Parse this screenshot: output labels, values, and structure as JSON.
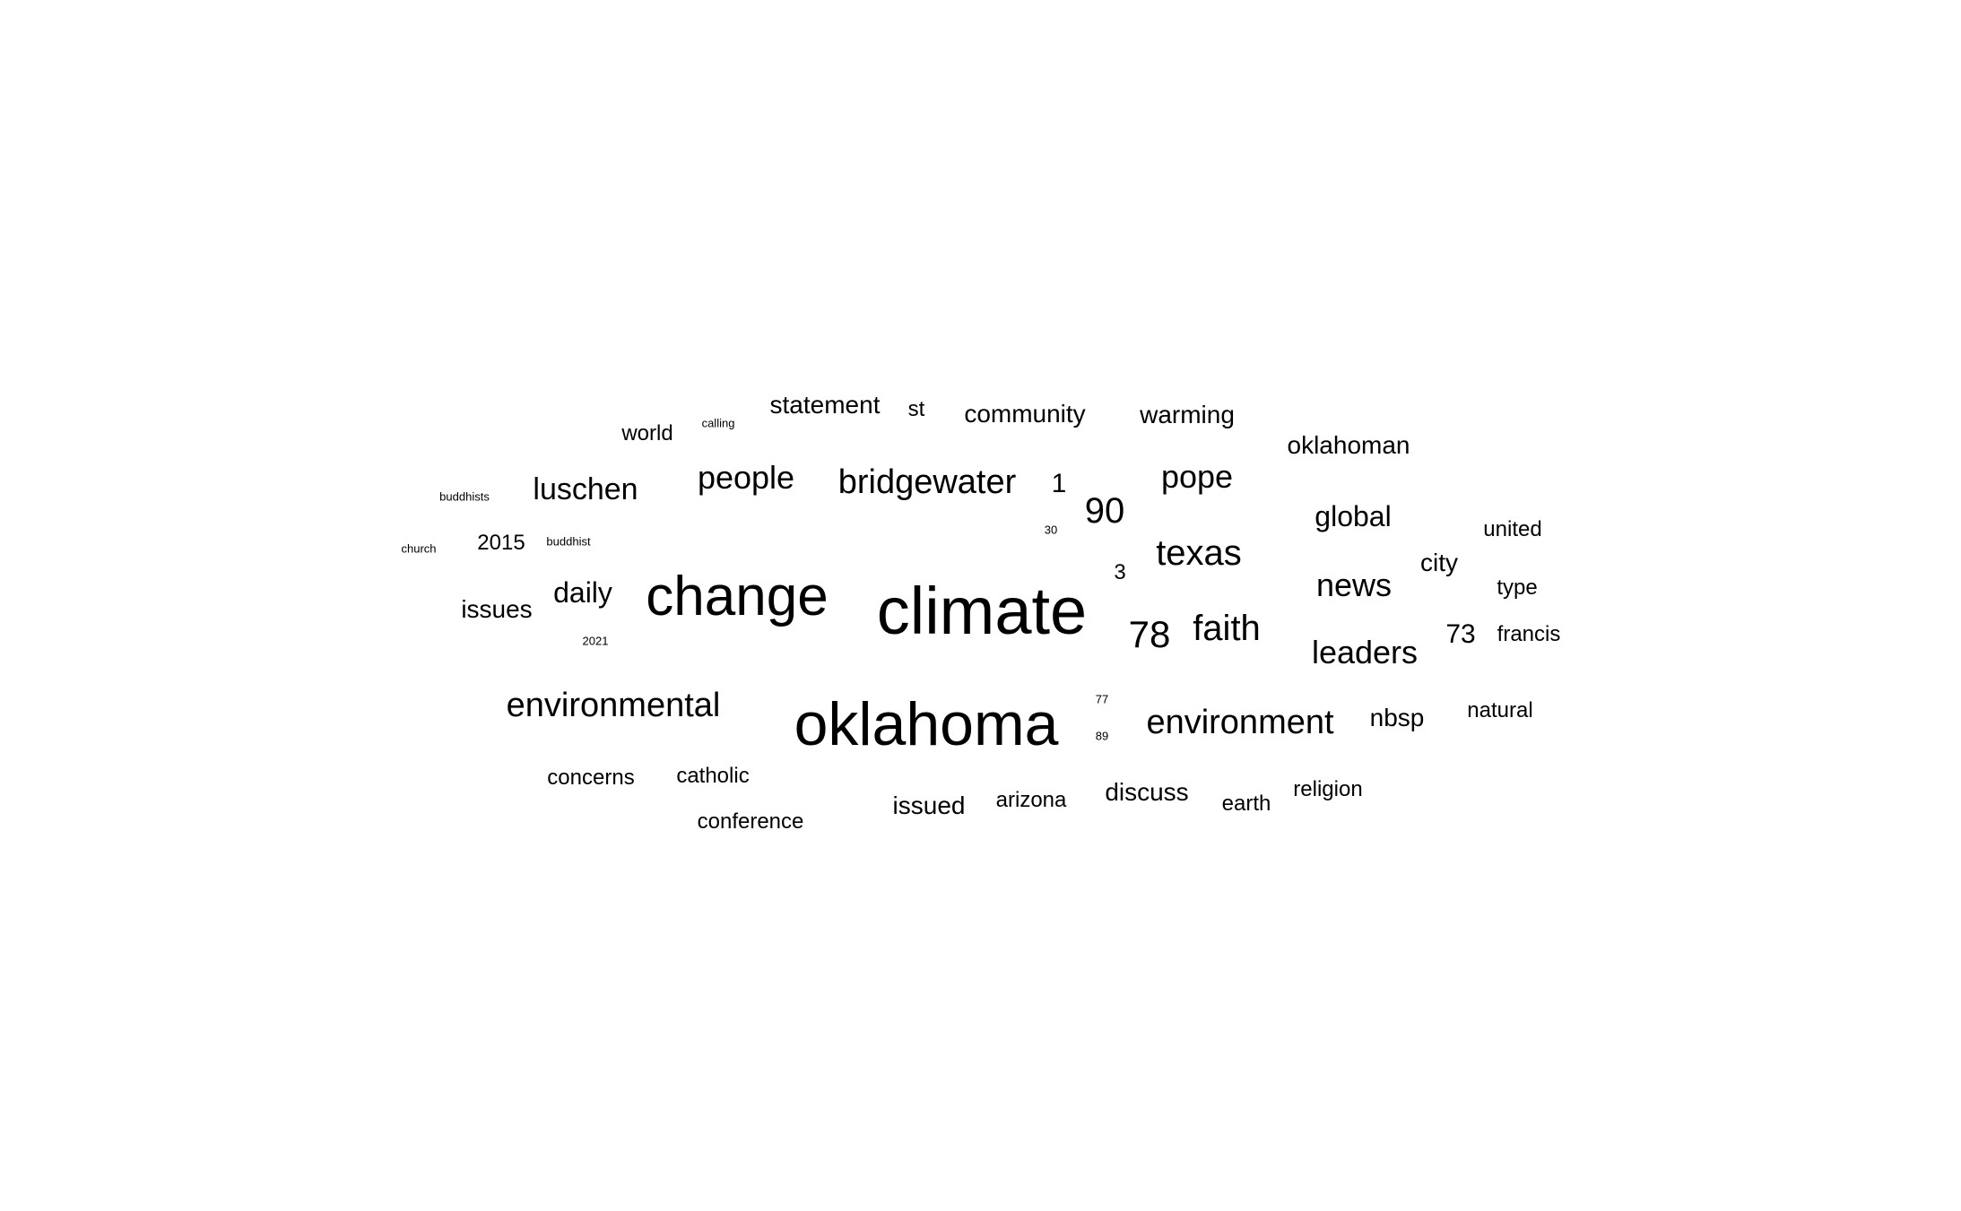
{
  "words": [
    {
      "text": "climate"
    },
    {
      "text": "oklahoma"
    },
    {
      "text": "change"
    },
    {
      "text": "environmental"
    },
    {
      "text": "environment"
    },
    {
      "text": "bridgewater"
    },
    {
      "text": "texas"
    },
    {
      "text": "faith"
    },
    {
      "text": "78"
    },
    {
      "text": "90"
    },
    {
      "text": "leaders"
    },
    {
      "text": "news"
    },
    {
      "text": "people"
    },
    {
      "text": "pope"
    },
    {
      "text": "luschen"
    },
    {
      "text": "global"
    },
    {
      "text": "daily"
    },
    {
      "text": "statement"
    },
    {
      "text": "community"
    },
    {
      "text": "warming"
    },
    {
      "text": "oklahoman"
    },
    {
      "text": "issues"
    },
    {
      "text": "discuss"
    },
    {
      "text": "issued"
    },
    {
      "text": "nbsp"
    },
    {
      "text": "73"
    },
    {
      "text": "city"
    },
    {
      "text": "1"
    },
    {
      "text": "2015"
    },
    {
      "text": "concerns"
    },
    {
      "text": "catholic"
    },
    {
      "text": "conference"
    },
    {
      "text": "arizona"
    },
    {
      "text": "earth"
    },
    {
      "text": "religion"
    },
    {
      "text": "natural"
    },
    {
      "text": "united"
    },
    {
      "text": "type"
    },
    {
      "text": "francis"
    },
    {
      "text": "world"
    },
    {
      "text": "st"
    },
    {
      "text": "3"
    },
    {
      "text": "calling"
    },
    {
      "text": "buddhists"
    },
    {
      "text": "buddhist"
    },
    {
      "text": "church"
    },
    {
      "text": "2021"
    },
    {
      "text": "30"
    },
    {
      "text": "77"
    },
    {
      "text": "89"
    }
  ]
}
